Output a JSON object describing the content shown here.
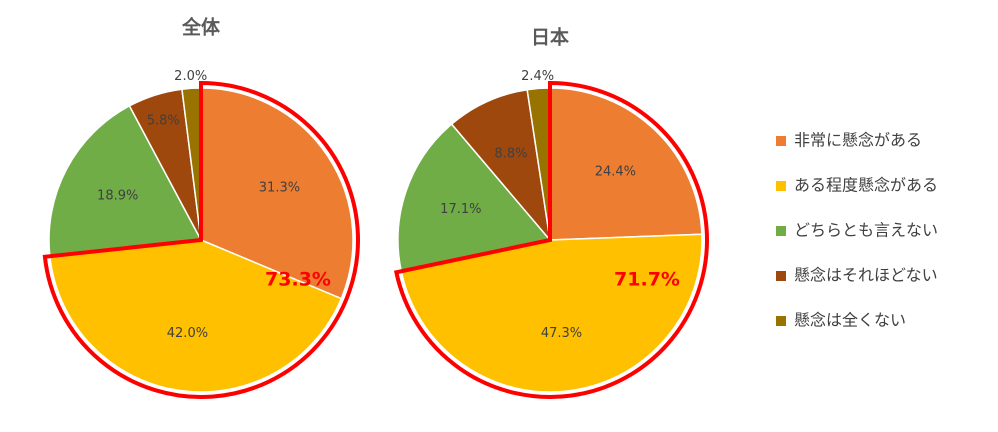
{
  "chart_data": [
    {
      "type": "pie",
      "title": "全体",
      "categories": [
        "非常に懸念がある",
        "ある程度懸念がある",
        "どちらとも言えない",
        "懸念はそれほどない",
        "懸念は全くない"
      ],
      "values": [
        31.3,
        42.0,
        18.9,
        5.8,
        2.0
      ],
      "value_labels": [
        "31.3%",
        "42.0%",
        "18.9%",
        "5.8%",
        "2.0%"
      ],
      "colors": [
        "#ED7D31",
        "#FFC000",
        "#70AD47",
        "#9E480E",
        "#997300"
      ],
      "annotation": "73.3%",
      "legend": "right"
    },
    {
      "type": "pie",
      "title": "日本",
      "values": [
        24.4,
        47.3,
        17.1,
        8.8,
        2.4
      ],
      "value_labels": [
        "24.4%",
        "47.3%",
        "17.1%",
        "8.8%",
        "2.4%"
      ],
      "colors": [
        "#ED7D31",
        "#FFC000",
        "#70AD47",
        "#9E480E",
        "#997300"
      ],
      "annotation": "71.7%"
    }
  ]
}
